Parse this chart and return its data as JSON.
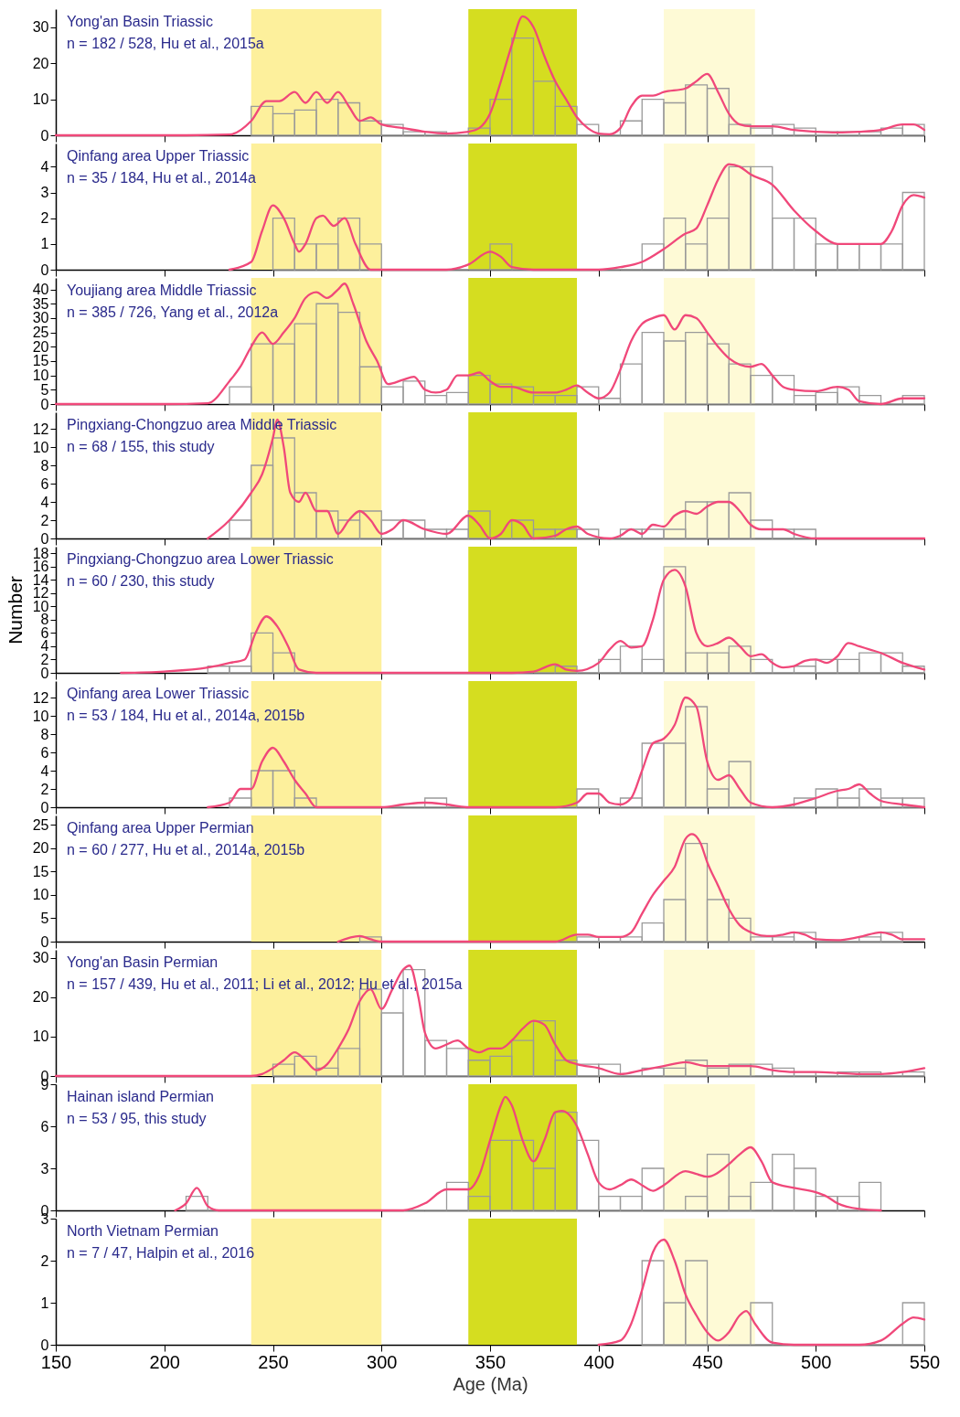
{
  "chart_data": [
    {
      "type": "histogram",
      "title": "Yong'an Basin Triassic",
      "subtitle": "n = 182 / 528, Hu et al., 2015a",
      "xlim": [
        150,
        550
      ],
      "xticks": [
        150,
        200,
        250,
        300,
        350,
        400,
        450,
        500,
        550
      ],
      "ylim": [
        0,
        35
      ],
      "yticks": [
        0,
        10,
        20,
        30
      ],
      "tick_labels": "y",
      "bands": [
        {
          "axis": "x",
          "from": 240,
          "to": 300,
          "color": "#fdf09c"
        },
        {
          "axis": "x",
          "from": 340,
          "to": 390,
          "color": "#d5dd20"
        },
        {
          "axis": "x",
          "from": 430,
          "to": 472,
          "color": "#fefad6"
        }
      ],
      "series": [
        {
          "type": "histogram",
          "color": "#9a9a9a",
          "bins": [
            240,
            250,
            260,
            270,
            280,
            290,
            300,
            310,
            320,
            330,
            340,
            350,
            360,
            370,
            380,
            390,
            400,
            410,
            420,
            430,
            440,
            450,
            460,
            470,
            480,
            490,
            500,
            510,
            520,
            530,
            540,
            550
          ],
          "values": [
            8,
            6,
            7,
            10,
            9,
            4,
            3,
            1,
            1,
            0,
            2,
            10,
            27,
            15,
            8,
            3,
            0,
            4,
            10,
            9,
            14,
            13,
            3,
            2,
            3,
            2,
            1,
            1,
            1,
            2,
            3
          ]
        },
        {
          "type": "line",
          "color": "#f0487a",
          "x": [
            150,
            210,
            230,
            240,
            247,
            253,
            260,
            265,
            270,
            275,
            280,
            285,
            290,
            295,
            300,
            310,
            320,
            330,
            340,
            345,
            350,
            355,
            360,
            365,
            370,
            375,
            380,
            385,
            390,
            395,
            400,
            405,
            410,
            415,
            420,
            425,
            430,
            440,
            445,
            450,
            455,
            460,
            465,
            470,
            480,
            490,
            500,
            510,
            520,
            530,
            540,
            545,
            550
          ],
          "values": [
            0,
            0,
            0.2,
            4,
            9.5,
            9.5,
            12,
            9,
            12,
            9,
            12,
            8,
            4,
            5,
            3,
            2,
            1,
            0.5,
            1,
            2,
            6,
            15,
            25,
            33,
            30,
            22,
            15,
            10,
            5,
            2,
            0.5,
            0.3,
            2,
            8,
            11,
            11,
            12,
            13,
            15,
            17,
            12,
            6,
            3,
            2.5,
            2.5,
            1.5,
            1,
            0.8,
            1,
            1.5,
            3,
            3,
            1.5
          ]
        }
      ]
    },
    {
      "type": "histogram",
      "title": "Qinfang area Upper Triassic",
      "subtitle": "n = 35 / 184, Hu et al., 2014a",
      "xlim": [
        150,
        550
      ],
      "xticks": [
        150,
        200,
        250,
        300,
        350,
        400,
        450,
        500,
        550
      ],
      "ylim": [
        0,
        4.9
      ],
      "yticks": [
        0,
        1,
        2,
        3,
        4
      ],
      "tick_labels": "y",
      "bands": [
        {
          "axis": "x",
          "from": 240,
          "to": 300,
          "color": "#fdf09c"
        },
        {
          "axis": "x",
          "from": 340,
          "to": 390,
          "color": "#d5dd20"
        },
        {
          "axis": "x",
          "from": 430,
          "to": 472,
          "color": "#fefad6"
        }
      ],
      "series": [
        {
          "type": "histogram",
          "color": "#9a9a9a",
          "bins": [
            250,
            260,
            270,
            280,
            290,
            300,
            310,
            320,
            330,
            340,
            350,
            360,
            370,
            380,
            390,
            400,
            410,
            420,
            430,
            440,
            450,
            460,
            470,
            480,
            490,
            500,
            510,
            520,
            530,
            540,
            550
          ],
          "values": [
            2,
            1,
            1,
            2,
            1,
            0,
            0,
            0,
            0,
            0,
            1,
            0,
            0,
            0,
            0,
            0,
            0,
            1,
            2,
            1,
            2,
            4,
            4,
            2,
            2,
            1,
            1,
            1,
            1,
            3
          ]
        },
        {
          "type": "line",
          "color": "#f0487a",
          "x": [
            230,
            240,
            245,
            250,
            255,
            260,
            262,
            265,
            270,
            273,
            278,
            283,
            288,
            295,
            330,
            340,
            350,
            355,
            360,
            370,
            400,
            410,
            420,
            430,
            440,
            445,
            450,
            455,
            460,
            465,
            470,
            480,
            490,
            500,
            510,
            520,
            530,
            535,
            540,
            545,
            550
          ],
          "values": [
            0,
            0.3,
            1.5,
            2.5,
            2,
            1,
            0.7,
            1,
            2,
            2.1,
            1.7,
            2,
            1,
            0,
            0,
            0.2,
            0.7,
            0.5,
            0.1,
            0,
            0,
            0.1,
            0.3,
            0.8,
            1.4,
            1.6,
            2.5,
            3.5,
            4.1,
            4,
            3.7,
            3.3,
            2.3,
            1.5,
            1,
            1,
            1,
            1.5,
            2.5,
            2.9,
            2.8
          ]
        }
      ]
    },
    {
      "type": "histogram",
      "title": "Youjiang area Middle Triassic",
      "subtitle": "n = 385 / 726, Yang et al., 2012a",
      "xlim": [
        150,
        550
      ],
      "xticks": [
        150,
        200,
        250,
        300,
        350,
        400,
        450,
        500,
        550
      ],
      "ylim": [
        0,
        44
      ],
      "yticks": [
        0,
        5,
        10,
        15,
        20,
        25,
        30,
        35,
        40
      ],
      "tick_labels": "y",
      "bands": [
        {
          "axis": "x",
          "from": 240,
          "to": 300,
          "color": "#fdf09c"
        },
        {
          "axis": "x",
          "from": 340,
          "to": 390,
          "color": "#d5dd20"
        },
        {
          "axis": "x",
          "from": 430,
          "to": 472,
          "color": "#fefad6"
        }
      ],
      "series": [
        {
          "type": "histogram",
          "color": "#9a9a9a",
          "bins": [
            230,
            240,
            250,
            260,
            270,
            280,
            290,
            300,
            310,
            320,
            330,
            340,
            350,
            360,
            370,
            380,
            390,
            400,
            410,
            420,
            430,
            440,
            450,
            460,
            470,
            480,
            490,
            500,
            510,
            520,
            530,
            540,
            550
          ],
          "values": [
            6,
            21,
            21,
            28,
            35,
            32,
            13,
            6,
            8,
            3,
            4,
            10,
            7,
            6,
            3,
            3,
            6,
            2,
            14,
            25,
            22,
            25,
            21,
            14,
            10,
            10,
            3,
            4,
            6,
            3,
            0,
            3
          ]
        },
        {
          "type": "line",
          "color": "#f0487a",
          "x": [
            150,
            200,
            220,
            230,
            235,
            240,
            245,
            250,
            255,
            260,
            265,
            270,
            275,
            280,
            283,
            287,
            293,
            298,
            303,
            310,
            315,
            320,
            325,
            330,
            335,
            340,
            345,
            350,
            355,
            360,
            370,
            380,
            385,
            390,
            395,
            400,
            405,
            410,
            415,
            420,
            425,
            430,
            435,
            440,
            445,
            450,
            455,
            460,
            470,
            475,
            480,
            485,
            490,
            500,
            510,
            515,
            520,
            530,
            540,
            550
          ],
          "values": [
            0,
            0,
            0.3,
            8,
            13,
            20,
            25,
            21,
            25,
            30,
            37,
            39,
            37,
            40,
            42,
            35,
            22,
            15,
            7,
            8.5,
            9.5,
            5,
            4,
            5,
            10,
            10,
            11,
            8,
            6,
            6,
            4,
            4,
            5,
            6.5,
            4,
            2,
            4,
            12,
            22,
            28,
            30,
            31,
            26,
            31,
            30,
            25,
            20,
            16,
            13,
            14,
            10,
            6,
            5,
            4.5,
            6,
            5,
            1,
            0,
            2,
            2
          ]
        }
      ]
    },
    {
      "type": "histogram",
      "title": "Pingxiang-Chongzuo area Middle Triassic",
      "subtitle": "n = 68 / 155, this study",
      "xlim": [
        150,
        550
      ],
      "xticks": [
        150,
        200,
        250,
        300,
        350,
        400,
        450,
        500,
        550
      ],
      "ylim": [
        0,
        13.8
      ],
      "yticks": [
        0,
        2,
        4,
        6,
        8,
        10,
        12
      ],
      "tick_labels": "y",
      "bands": [
        {
          "axis": "x",
          "from": 240,
          "to": 300,
          "color": "#fdf09c"
        },
        {
          "axis": "x",
          "from": 340,
          "to": 390,
          "color": "#d5dd20"
        },
        {
          "axis": "x",
          "from": 430,
          "to": 472,
          "color": "#fefad6"
        }
      ],
      "series": [
        {
          "type": "histogram",
          "color": "#9a9a9a",
          "bins": [
            230,
            240,
            250,
            260,
            270,
            280,
            290,
            300,
            310,
            320,
            330,
            340,
            350,
            360,
            370,
            380,
            390,
            400,
            410,
            420,
            430,
            440,
            450,
            460,
            470,
            480,
            490,
            500
          ],
          "values": [
            2,
            8,
            11,
            5,
            3,
            2,
            3,
            2,
            2,
            1,
            1,
            3,
            0,
            2,
            1,
            1,
            1,
            0,
            1,
            1,
            1,
            4,
            4,
            5,
            2,
            1,
            1
          ]
        },
        {
          "type": "line",
          "color": "#f0487a",
          "x": [
            220,
            230,
            240,
            245,
            250,
            252,
            255,
            258,
            262,
            265,
            270,
            275,
            280,
            285,
            290,
            295,
            300,
            305,
            310,
            320,
            330,
            340,
            345,
            350,
            355,
            360,
            365,
            370,
            380,
            385,
            390,
            395,
            405,
            410,
            415,
            420,
            425,
            430,
            435,
            440,
            445,
            450,
            455,
            460,
            465,
            470,
            475,
            485,
            490,
            500,
            550
          ],
          "values": [
            0,
            2,
            5,
            7,
            11,
            13,
            10,
            5,
            4,
            5,
            3,
            3,
            0.5,
            2,
            3,
            2,
            0.5,
            1,
            2,
            1,
            0.5,
            2.5,
            1.5,
            0,
            0.5,
            2,
            1.5,
            0,
            0.3,
            1,
            1.3,
            0.5,
            0,
            0.3,
            1,
            0.5,
            1.5,
            1.3,
            2.5,
            3,
            2.7,
            3.5,
            4,
            4,
            3,
            1.5,
            1,
            1,
            0.5,
            0,
            0
          ]
        }
      ]
    },
    {
      "type": "histogram",
      "title": "Pingxiang-Chongzuo area Lower Triassic",
      "subtitle": "n = 60 / 230, this study",
      "ylabel": "Number",
      "xlim": [
        150,
        550
      ],
      "xticks": [
        150,
        200,
        250,
        300,
        350,
        400,
        450,
        500,
        550
      ],
      "ylim": [
        0,
        19
      ],
      "yticks": [
        0,
        2,
        4,
        6,
        8,
        10,
        12,
        14,
        16,
        18
      ],
      "tick_labels": "y",
      "bands": [
        {
          "axis": "x",
          "from": 240,
          "to": 300,
          "color": "#fdf09c"
        },
        {
          "axis": "x",
          "from": 340,
          "to": 390,
          "color": "#d5dd20"
        },
        {
          "axis": "x",
          "from": 430,
          "to": 472,
          "color": "#fefad6"
        }
      ],
      "series": [
        {
          "type": "histogram",
          "color": "#9a9a9a",
          "bins": [
            220,
            230,
            240,
            250,
            260,
            270,
            280,
            290,
            300,
            310,
            320,
            330,
            340,
            350,
            360,
            370,
            380,
            390,
            400,
            410,
            420,
            430,
            440,
            450,
            460,
            470,
            480,
            490,
            500,
            510,
            520,
            530,
            540,
            550
          ],
          "values": [
            1,
            1,
            6,
            3,
            0,
            0,
            0,
            0,
            0,
            0,
            0,
            0,
            0,
            0,
            0,
            0,
            1,
            0,
            2,
            4,
            2,
            16,
            3,
            3,
            4,
            2,
            0,
            1,
            2,
            2,
            3,
            3,
            1
          ]
        },
        {
          "type": "line",
          "color": "#f0487a",
          "x": [
            180,
            200,
            220,
            230,
            237,
            242,
            247,
            252,
            257,
            262,
            270,
            360,
            370,
            380,
            385,
            390,
            400,
            405,
            410,
            415,
            420,
            425,
            430,
            435,
            440,
            445,
            450,
            455,
            460,
            465,
            470,
            475,
            480,
            485,
            490,
            495,
            500,
            505,
            510,
            515,
            520,
            525,
            530,
            540,
            550
          ],
          "values": [
            0,
            0.2,
            0.8,
            1.5,
            2,
            6,
            8.5,
            7,
            4,
            0.5,
            0,
            0,
            0.2,
            1.3,
            0.5,
            0.3,
            1.5,
            3.5,
            4.8,
            3.8,
            4,
            8,
            14,
            15.5,
            13,
            6,
            4,
            4.5,
            5.3,
            4,
            2.5,
            2.8,
            1.5,
            0.8,
            1,
            1.8,
            2,
            1.5,
            2.5,
            4.5,
            4,
            3.5,
            3,
            1.5,
            0.5
          ]
        }
      ]
    },
    {
      "type": "histogram",
      "title": "Qinfang area Lower Triassic",
      "subtitle": "n = 53 / 184, Hu et al., 2014a, 2015b",
      "xlim": [
        150,
        550
      ],
      "xticks": [
        150,
        200,
        250,
        300,
        350,
        400,
        450,
        500,
        550
      ],
      "ylim": [
        0,
        13.8
      ],
      "yticks": [
        0,
        2,
        4,
        6,
        8,
        10,
        12
      ],
      "tick_labels": "y",
      "bands": [
        {
          "axis": "x",
          "from": 240,
          "to": 300,
          "color": "#fdf09c"
        },
        {
          "axis": "x",
          "from": 340,
          "to": 390,
          "color": "#d5dd20"
        },
        {
          "axis": "x",
          "from": 430,
          "to": 472,
          "color": "#fefad6"
        }
      ],
      "series": [
        {
          "type": "histogram",
          "color": "#9a9a9a",
          "bins": [
            230,
            240,
            250,
            260,
            270,
            280,
            290,
            300,
            310,
            320,
            330,
            340,
            350,
            360,
            370,
            380,
            390,
            400,
            410,
            420,
            430,
            440,
            450,
            460,
            470,
            480,
            490,
            500,
            510,
            520,
            530,
            540,
            550
          ],
          "values": [
            1,
            4,
            4,
            1,
            0,
            0,
            0,
            0,
            0,
            1,
            0,
            0,
            0,
            0,
            0,
            0,
            2,
            0,
            1,
            7,
            7,
            11,
            2,
            5,
            0,
            0,
            1,
            2,
            1,
            2,
            1,
            1
          ]
        },
        {
          "type": "line",
          "color": "#f0487a",
          "x": [
            220,
            230,
            235,
            240,
            245,
            250,
            255,
            260,
            265,
            270,
            300,
            310,
            320,
            330,
            340,
            380,
            390,
            395,
            400,
            405,
            410,
            415,
            420,
            425,
            430,
            435,
            440,
            445,
            450,
            455,
            460,
            465,
            470,
            480,
            490,
            500,
            510,
            515,
            520,
            525,
            530,
            540,
            550
          ],
          "values": [
            0,
            0.5,
            2,
            2,
            5,
            6.5,
            5,
            3,
            1.5,
            0,
            0,
            0.3,
            0.5,
            0.3,
            0,
            0,
            0.5,
            1.5,
            1.5,
            0.5,
            0.3,
            1,
            4,
            7,
            7.5,
            9,
            12,
            11,
            5,
            3,
            3.5,
            2,
            0.5,
            0,
            0.3,
            1,
            1.8,
            2,
            2.5,
            1.5,
            0.7,
            0.3,
            0
          ]
        }
      ]
    },
    {
      "type": "histogram",
      "title": "Qinfang area Upper Permian",
      "subtitle": "n = 60 / 277, Hu et al., 2014a, 2015b",
      "xlim": [
        150,
        550
      ],
      "xticks": [
        150,
        200,
        250,
        300,
        350,
        400,
        450,
        500,
        550
      ],
      "ylim": [
        0,
        27
      ],
      "yticks": [
        0,
        5,
        10,
        15,
        20,
        25
      ],
      "tick_labels": "y",
      "bands": [
        {
          "axis": "x",
          "from": 240,
          "to": 300,
          "color": "#fdf09c"
        },
        {
          "axis": "x",
          "from": 340,
          "to": 390,
          "color": "#d5dd20"
        },
        {
          "axis": "x",
          "from": 430,
          "to": 472,
          "color": "#fefad6"
        }
      ],
      "series": [
        {
          "type": "histogram",
          "color": "#9a9a9a",
          "bins": [
            290,
            300,
            310,
            320,
            330,
            340,
            350,
            360,
            370,
            380,
            390,
            400,
            410,
            420,
            430,
            440,
            450,
            460,
            470,
            480,
            490,
            500,
            510,
            520,
            530,
            540
          ],
          "values": [
            1,
            0,
            0,
            0,
            0,
            0,
            0,
            0,
            0,
            0,
            1,
            1,
            1,
            4,
            9,
            21,
            9,
            5,
            1,
            1,
            2,
            0,
            0,
            1,
            2
          ]
        },
        {
          "type": "line",
          "color": "#f0487a",
          "x": [
            280,
            290,
            295,
            300,
            380,
            390,
            395,
            400,
            410,
            415,
            420,
            425,
            430,
            435,
            440,
            443,
            447,
            450,
            455,
            460,
            465,
            470,
            475,
            480,
            485,
            490,
            495,
            500,
            510,
            520,
            530,
            535,
            540,
            550
          ],
          "values": [
            0,
            1.2,
            0.5,
            0,
            0,
            1.5,
            1.5,
            1,
            1,
            2,
            6,
            10,
            13,
            16,
            22,
            23,
            21,
            17,
            12,
            7,
            3.5,
            2,
            1.3,
            1.2,
            1.5,
            2,
            1.5,
            0.5,
            0.3,
            1,
            2,
            1.5,
            0.5,
            0.5
          ]
        }
      ]
    },
    {
      "type": "histogram",
      "title": "Yong'an Basin Permian",
      "subtitle": "n = 157 / 439, Hu et al., 2011; Li et al., 2012; Hu et al., 2015a",
      "xlim": [
        150,
        550
      ],
      "xticks": [
        150,
        200,
        250,
        300,
        350,
        400,
        450,
        500,
        550
      ],
      "ylim": [
        0,
        32
      ],
      "yticks": [
        0,
        10,
        20,
        30
      ],
      "tick_labels": "y",
      "bands": [
        {
          "axis": "x",
          "from": 240,
          "to": 300,
          "color": "#fdf09c"
        },
        {
          "axis": "x",
          "from": 340,
          "to": 390,
          "color": "#d5dd20"
        },
        {
          "axis": "x",
          "from": 430,
          "to": 472,
          "color": "#fefad6"
        }
      ],
      "series": [
        {
          "type": "histogram",
          "color": "#9a9a9a",
          "bins": [
            250,
            260,
            270,
            280,
            290,
            300,
            310,
            320,
            330,
            340,
            350,
            360,
            370,
            380,
            390,
            400,
            410,
            420,
            430,
            440,
            450,
            460,
            470,
            480,
            490,
            500,
            510,
            520,
            530,
            540,
            550
          ],
          "values": [
            3,
            5,
            2,
            7,
            22,
            16,
            27,
            9,
            7,
            4,
            5,
            9,
            14,
            4,
            3,
            3,
            0,
            2,
            2,
            4,
            2,
            3,
            3,
            2,
            1,
            0,
            1,
            1,
            0,
            1
          ]
        },
        {
          "type": "line",
          "color": "#f0487a",
          "x": [
            150,
            240,
            245,
            250,
            255,
            260,
            265,
            270,
            275,
            280,
            285,
            290,
            295,
            300,
            305,
            310,
            313,
            317,
            320,
            325,
            330,
            335,
            340,
            345,
            350,
            355,
            360,
            365,
            370,
            375,
            380,
            385,
            390,
            400,
            410,
            420,
            430,
            440,
            450,
            460,
            470,
            480,
            490,
            500,
            510,
            520,
            530,
            540,
            550
          ],
          "values": [
            0,
            0,
            0.5,
            2,
            4,
            6,
            4,
            1.5,
            3,
            7,
            12,
            19,
            22,
            17,
            22,
            27,
            28,
            20,
            11,
            7,
            8,
            9,
            7,
            6,
            7,
            7,
            9,
            12,
            14,
            13,
            8,
            4,
            3,
            2,
            0.5,
            1.5,
            2.5,
            3.5,
            2.5,
            2.5,
            2.5,
            1.5,
            1,
            1,
            0.8,
            0.5,
            0.5,
            1,
            2
          ]
        }
      ]
    },
    {
      "type": "histogram",
      "title": "Hainan island Permian",
      "subtitle": "n = 53 / 95, this study",
      "xlim": [
        150,
        550
      ],
      "xticks": [
        150,
        200,
        250,
        300,
        350,
        400,
        450,
        500,
        550
      ],
      "ylim": [
        0,
        9
      ],
      "yticks": [
        0,
        3,
        6,
        9
      ],
      "tick_labels": "y",
      "bands": [
        {
          "axis": "x",
          "from": 240,
          "to": 300,
          "color": "#fdf09c"
        },
        {
          "axis": "x",
          "from": 340,
          "to": 390,
          "color": "#d5dd20"
        },
        {
          "axis": "x",
          "from": 430,
          "to": 472,
          "color": "#fefad6"
        }
      ],
      "series": [
        {
          "type": "histogram",
          "color": "#9a9a9a",
          "bins": [
            210,
            220,
            230,
            240,
            250,
            260,
            270,
            280,
            290,
            300,
            310,
            320,
            330,
            340,
            350,
            360,
            370,
            380,
            390,
            400,
            410,
            420,
            430,
            440,
            450,
            460,
            470,
            480,
            490,
            500,
            510,
            520,
            530
          ],
          "values": [
            1,
            0,
            0,
            0,
            0,
            0,
            0,
            0,
            0,
            0,
            0,
            0,
            2,
            1,
            5,
            5,
            3,
            7,
            5,
            1,
            1,
            3,
            0,
            1,
            4,
            1,
            2,
            4,
            3,
            1,
            1,
            2
          ]
        },
        {
          "type": "line",
          "color": "#f0487a",
          "x": [
            205,
            210,
            215,
            220,
            225,
            310,
            320,
            330,
            340,
            345,
            350,
            355,
            357,
            360,
            365,
            370,
            375,
            380,
            383,
            390,
            395,
            400,
            405,
            410,
            415,
            420,
            425,
            430,
            440,
            445,
            450,
            460,
            465,
            470,
            475,
            480,
            490,
            500,
            505,
            510,
            520,
            530
          ],
          "values": [
            0,
            0.5,
            1.6,
            0.3,
            0,
            0,
            0.5,
            1.5,
            1.5,
            2.5,
            5,
            7.5,
            8.1,
            7.5,
            5,
            3.5,
            5,
            7,
            7.1,
            6,
            4,
            2,
            1.5,
            1.8,
            2.2,
            1.8,
            1.4,
            1.8,
            2.8,
            2.6,
            2.4,
            3.3,
            4,
            4.5,
            3.5,
            2,
            1.6,
            1.3,
            1,
            0.5,
            0.1,
            0
          ]
        }
      ]
    },
    {
      "type": "histogram",
      "title": "North Vietnam Permian",
      "subtitle": "n = 7 / 47, Halpin et al., 2016",
      "xlabel": "Age (Ma)",
      "xlim": [
        150,
        550
      ],
      "xticks": [
        150,
        200,
        250,
        300,
        350,
        400,
        450,
        500,
        550
      ],
      "ylim": [
        0,
        3
      ],
      "yticks": [
        0,
        1,
        2,
        3
      ],
      "bands": [
        {
          "axis": "x",
          "from": 240,
          "to": 300,
          "color": "#fdf09c"
        },
        {
          "axis": "x",
          "from": 340,
          "to": 390,
          "color": "#d5dd20"
        },
        {
          "axis": "x",
          "from": 430,
          "to": 472,
          "color": "#fefad6"
        }
      ],
      "series": [
        {
          "type": "histogram",
          "color": "#9a9a9a",
          "bins": [
            420,
            430,
            440,
            450,
            460,
            470,
            480,
            490,
            500,
            510,
            520,
            530,
            540,
            550
          ],
          "values": [
            2,
            1,
            2,
            0,
            0,
            1,
            0,
            0,
            0,
            0,
            0,
            0,
            1
          ]
        },
        {
          "type": "line",
          "color": "#f0487a",
          "x": [
            400,
            410,
            415,
            420,
            425,
            430,
            435,
            440,
            445,
            450,
            455,
            460,
            465,
            468,
            472,
            480,
            490,
            520,
            530,
            540,
            545,
            550
          ],
          "values": [
            0,
            0.1,
            0.5,
            1.3,
            2.2,
            2.5,
            2,
            1.2,
            0.7,
            0.3,
            0.1,
            0.3,
            0.7,
            0.8,
            0.5,
            0.05,
            0,
            0,
            0.1,
            0.5,
            0.65,
            0.6
          ]
        }
      ]
    }
  ]
}
